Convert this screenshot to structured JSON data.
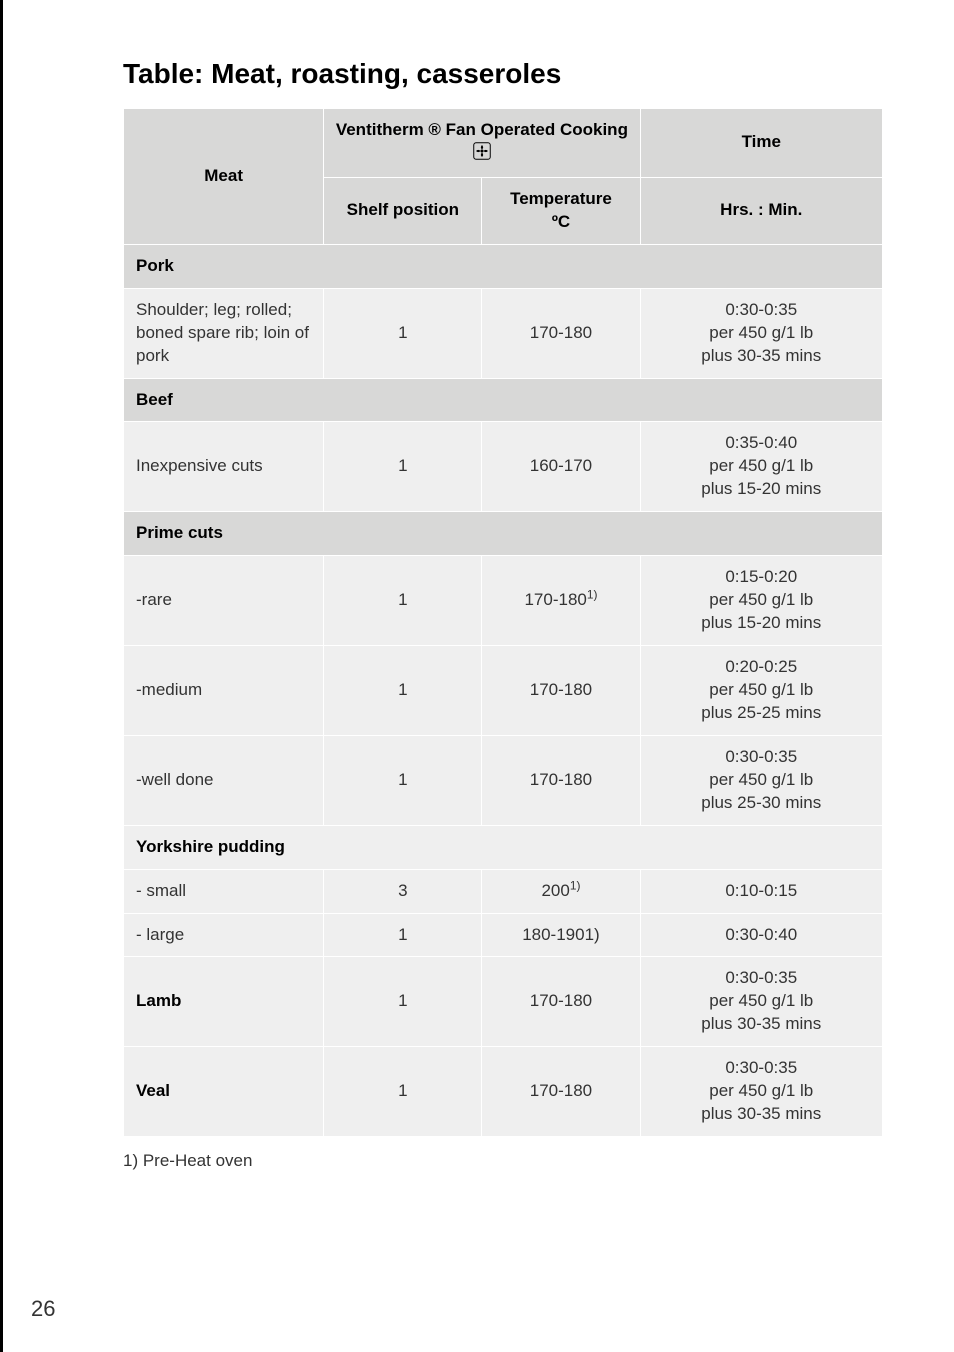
{
  "title": "Table: Meat, roasting, casseroles",
  "header": {
    "meat": "Meat",
    "ventitherm": "Ventitherm ® Fan Operated Cooking ",
    "time": "Time",
    "shelf": "Shelf position",
    "temperature_label": "Temperature",
    "temperature_unit": "ºC",
    "hrs_min": "Hrs. : Min."
  },
  "sections": {
    "pork": "Pork",
    "beef": "Beef",
    "prime": "Prime cuts",
    "yorkshire": "Yorkshire pudding"
  },
  "rows": {
    "pork1": {
      "meat": "Shoulder; leg; rolled; boned spare rib; loin of pork",
      "shelf": "1",
      "temp": "170-180",
      "time": "0:30-0:35\nper 450 g/1 lb\nplus 30-35 mins"
    },
    "beef1": {
      "meat": "Inexpensive cuts",
      "shelf": "1",
      "temp": "160-170",
      "time": "0:35-0:40\nper 450 g/1 lb\nplus 15-20 mins"
    },
    "rare": {
      "meat": "-rare",
      "shelf": "1",
      "temp": "170-180",
      "temp_sup": "1)",
      "time": "0:15-0:20\nper 450 g/1 lb\nplus 15-20 mins"
    },
    "medium": {
      "meat": "-medium",
      "shelf": "1",
      "temp": "170-180",
      "time": "0:20-0:25\nper 450 g/1 lb\nplus 25-25 mins"
    },
    "well": {
      "meat": "-well done",
      "shelf": "1",
      "temp": "170-180",
      "time": "0:30-0:35\nper 450 g/1 lb\nplus 25-30 mins"
    },
    "ysmall": {
      "meat": "- small",
      "shelf": "3",
      "temp": "200",
      "temp_sup": "1)",
      "time": "0:10-0:15"
    },
    "ylarge": {
      "meat": "- large",
      "shelf": "1",
      "temp": "180-1901)",
      "time": "0:30-0:40"
    },
    "lamb": {
      "meat": "Lamb",
      "shelf": "1",
      "temp": "170-180",
      "time": "0:30-0:35\nper 450 g/1 lb\nplus 30-35 mins"
    },
    "veal": {
      "meat": "Veal",
      "shelf": "1",
      "temp": "170-180",
      "time": "0:30-0:35\nper 450 g/1 lb\nplus 30-35 mins"
    }
  },
  "footnote": "1) Pre-Heat oven",
  "page_number": "26",
  "styles": {
    "light_row_bg": "#efefef",
    "dark_row_bg": "#d8d8d7",
    "border_color": "#ffffff",
    "text_color": "#333333",
    "title_fontsize": 28,
    "cell_fontsize": 17
  }
}
